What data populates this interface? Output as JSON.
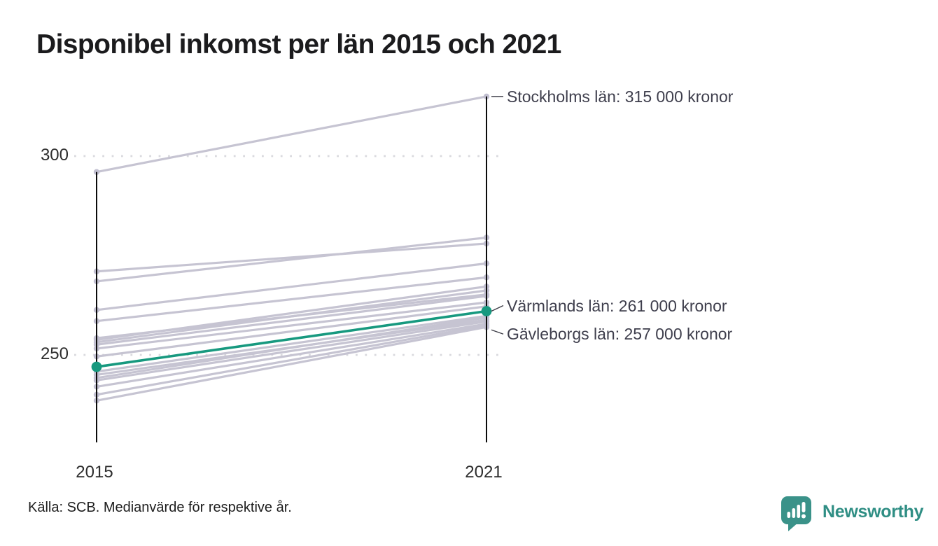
{
  "title": "Disponibel inkomst per län 2015 och 2021",
  "source": "Källa: SCB. Medianvärde för respektive år.",
  "logo": {
    "text": "Newsworthy",
    "icon": "newsworthy-pin-barchart-icon"
  },
  "colors": {
    "accent_teal": "#17997f",
    "line_gray": "#c6c4d2",
    "endpoint_gray": "#c1bfd0",
    "grid_dot": "#d9d9de",
    "axis_line": "#0b0b0b",
    "connector": "#3c3c46",
    "annotation_text": "#3e3e4c",
    "title_text": "#1b1b1d",
    "logo_teal": "#3a9289",
    "logo_text_teal": "#2f8e84"
  },
  "chart_data": {
    "type": "line",
    "subtype": "slope",
    "title": "Disponibel inkomst per län 2015 och 2021",
    "categories": [
      "2015",
      "2021"
    ],
    "unit": "tusen kronor (medianvärde)",
    "y_ticks": [
      300,
      250
    ],
    "ylim": [
      228,
      318
    ],
    "grid": "dotted horizontal lines at y_ticks",
    "legend": "none",
    "series": [
      {
        "name": "Stockholms län",
        "values": [
          296,
          315
        ],
        "highlight": false
      },
      {
        "values": [
          271,
          278
        ],
        "highlight": false
      },
      {
        "values": [
          268.5,
          279.5
        ],
        "highlight": false
      },
      {
        "values": [
          261.3,
          273
        ],
        "highlight": false
      },
      {
        "values": [
          258.5,
          269.5
        ],
        "highlight": false
      },
      {
        "values": [
          254.2,
          265.2
        ],
        "highlight": false
      },
      {
        "values": [
          253.8,
          267.2
        ],
        "highlight": false
      },
      {
        "values": [
          253.2,
          266.2
        ],
        "highlight": false
      },
      {
        "values": [
          252.6,
          264.8
        ],
        "highlight": false
      },
      {
        "values": [
          251.6,
          263.2
        ],
        "highlight": false
      },
      {
        "values": [
          249.6,
          262.2
        ],
        "highlight": false
      },
      {
        "values": [
          245.8,
          259.8
        ],
        "highlight": false
      },
      {
        "values": [
          245,
          258.8
        ],
        "highlight": false
      },
      {
        "values": [
          244.2,
          259.4
        ],
        "highlight": false
      },
      {
        "values": [
          243.6,
          258.4
        ],
        "highlight": false
      },
      {
        "values": [
          242,
          257.8
        ],
        "highlight": false
      },
      {
        "values": [
          240,
          257.4
        ],
        "highlight": false
      },
      {
        "name": "Gävleborgs län",
        "values": [
          238.5,
          257
        ],
        "highlight": false
      },
      {
        "name": "Värmlands län",
        "values": [
          247,
          261
        ],
        "highlight": true
      }
    ],
    "annotations": [
      {
        "text": "Stockholms län: 315 000 kronor",
        "anchor_value": 315
      },
      {
        "text": "Värmlands län: 261 000 kronor",
        "anchor_value": 261
      },
      {
        "text": "Gävleborgs län: 257 000 kronor",
        "anchor_value": 257
      }
    ]
  }
}
